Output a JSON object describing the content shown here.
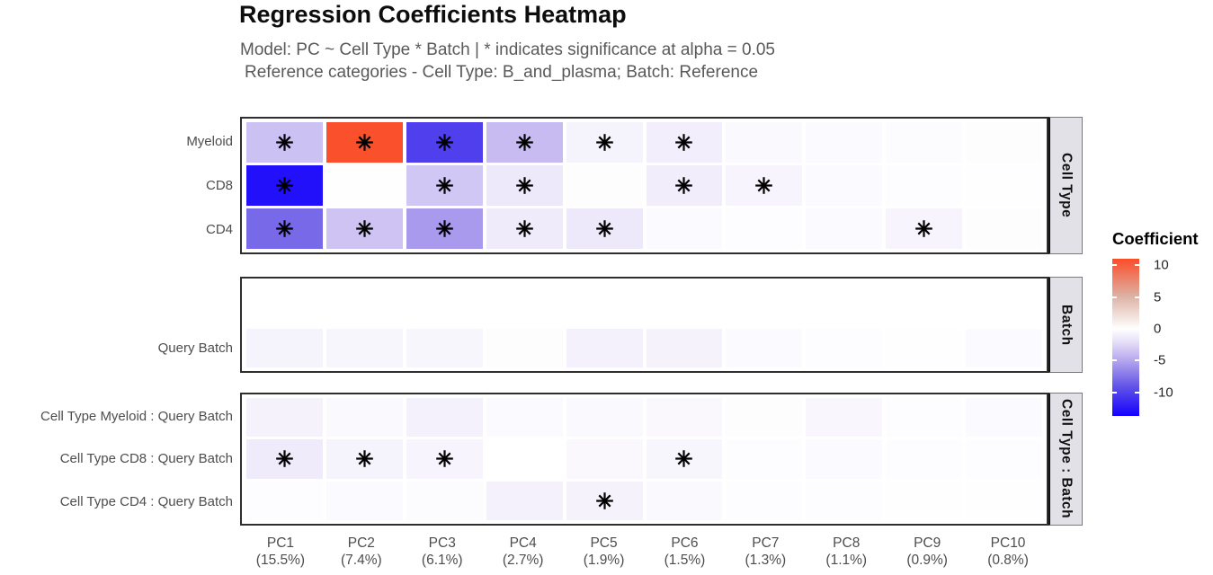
{
  "chart_data": {
    "type": "heatmap",
    "title": "Regression Coefficients Heatmap",
    "subtitle_line1": "Model: PC ~ Cell Type * Batch | * indicates significance at alpha = 0.05",
    "subtitle_line2": "Reference categories - Cell Type: B_and_plasma; Batch: Reference",
    "significance_marker": "8-spoke-asterisk-icon",
    "x_categories": [
      {
        "pc": "PC1",
        "variance": "(15.5%)"
      },
      {
        "pc": "PC2",
        "variance": "(7.4%)"
      },
      {
        "pc": "PC3",
        "variance": "(6.1%)"
      },
      {
        "pc": "PC4",
        "variance": "(2.7%)"
      },
      {
        "pc": "PC5",
        "variance": "(1.9%)"
      },
      {
        "pc": "PC6",
        "variance": "(1.5%)"
      },
      {
        "pc": "PC7",
        "variance": "(1.3%)"
      },
      {
        "pc": "PC8",
        "variance": "(1.1%)"
      },
      {
        "pc": "PC9",
        "variance": "(0.9%)"
      },
      {
        "pc": "PC10",
        "variance": "(0.8%)"
      }
    ],
    "facets": [
      {
        "strip": "Cell Type",
        "rows": [
          {
            "label": "Myeloid",
            "values": [
              -3.6,
              10.8,
              -10.2,
              -3.9,
              -0.8,
              -1.1,
              -0.4,
              -0.35,
              -0.25,
              -0.15
            ],
            "sig": [
              1,
              1,
              1,
              1,
              1,
              1,
              0,
              0,
              0,
              0
            ]
          },
          {
            "label": "CD8",
            "values": [
              -12.8,
              -0.05,
              -3.3,
              -1.4,
              -0.15,
              -1.15,
              -0.7,
              -0.35,
              -0.2,
              -0.1
            ],
            "sig": [
              1,
              0,
              1,
              1,
              0,
              1,
              1,
              0,
              0,
              0
            ]
          },
          {
            "label": "CD4",
            "values": [
              -8.0,
              -3.5,
              -5.6,
              -1.3,
              -1.4,
              -0.3,
              -0.2,
              -0.35,
              -0.7,
              -0.15
            ],
            "sig": [
              1,
              1,
              1,
              1,
              1,
              0,
              0,
              0,
              1,
              0
            ]
          }
        ]
      },
      {
        "strip": "Batch",
        "rows": [
          {
            "label": "Query Batch",
            "values": [
              -0.8,
              -0.6,
              -0.55,
              -0.15,
              -0.9,
              -0.85,
              -0.35,
              -0.2,
              -0.1,
              -0.3
            ],
            "sig": [
              0,
              0,
              0,
              0,
              0,
              0,
              0,
              0,
              0,
              0
            ]
          }
        ]
      },
      {
        "strip": "Cell Type : Batch",
        "rows": [
          {
            "label": "Cell Type Myeloid : Query Batch",
            "values": [
              -0.85,
              -0.4,
              -0.9,
              -0.3,
              -0.4,
              -0.45,
              -0.15,
              -0.5,
              -0.2,
              -0.35
            ],
            "sig": [
              0,
              0,
              0,
              0,
              0,
              0,
              0,
              0,
              0,
              0
            ]
          },
          {
            "label": "Cell Type CD8 : Query Batch",
            "values": [
              -1.3,
              -0.8,
              -0.7,
              0.0,
              -0.45,
              -0.6,
              -0.2,
              -0.3,
              -0.2,
              -0.2
            ],
            "sig": [
              1,
              1,
              1,
              0,
              0,
              1,
              0,
              0,
              0,
              0
            ]
          },
          {
            "label": "Cell Type CD4 : Query Batch",
            "values": [
              -0.2,
              -0.3,
              -0.25,
              -0.9,
              -0.85,
              -0.4,
              -0.2,
              -0.2,
              -0.1,
              -0.1
            ],
            "sig": [
              0,
              0,
              0,
              0,
              1,
              0,
              0,
              0,
              0,
              0
            ]
          }
        ]
      }
    ],
    "legend": {
      "title": "Coefficient",
      "ticks": [
        10,
        5,
        0,
        -5,
        -10
      ],
      "domain": [
        -13.7,
        11
      ],
      "scale_stops": [
        {
          "value": 11,
          "color": "#FB4D28"
        },
        {
          "value": 5,
          "color": "#DDB3A6"
        },
        {
          "value": 0,
          "color": "#FFFFFF"
        },
        {
          "value": -2,
          "color": "#E7E0F8"
        },
        {
          "value": -5,
          "color": "#B5A6EE"
        },
        {
          "value": -9,
          "color": "#6355E6"
        },
        {
          "value": -13.7,
          "color": "#1400FF"
        }
      ],
      "strip_background": "#E3E1E8",
      "panel_border_color": "#2E2E2E",
      "marker_color": "#000000"
    }
  }
}
